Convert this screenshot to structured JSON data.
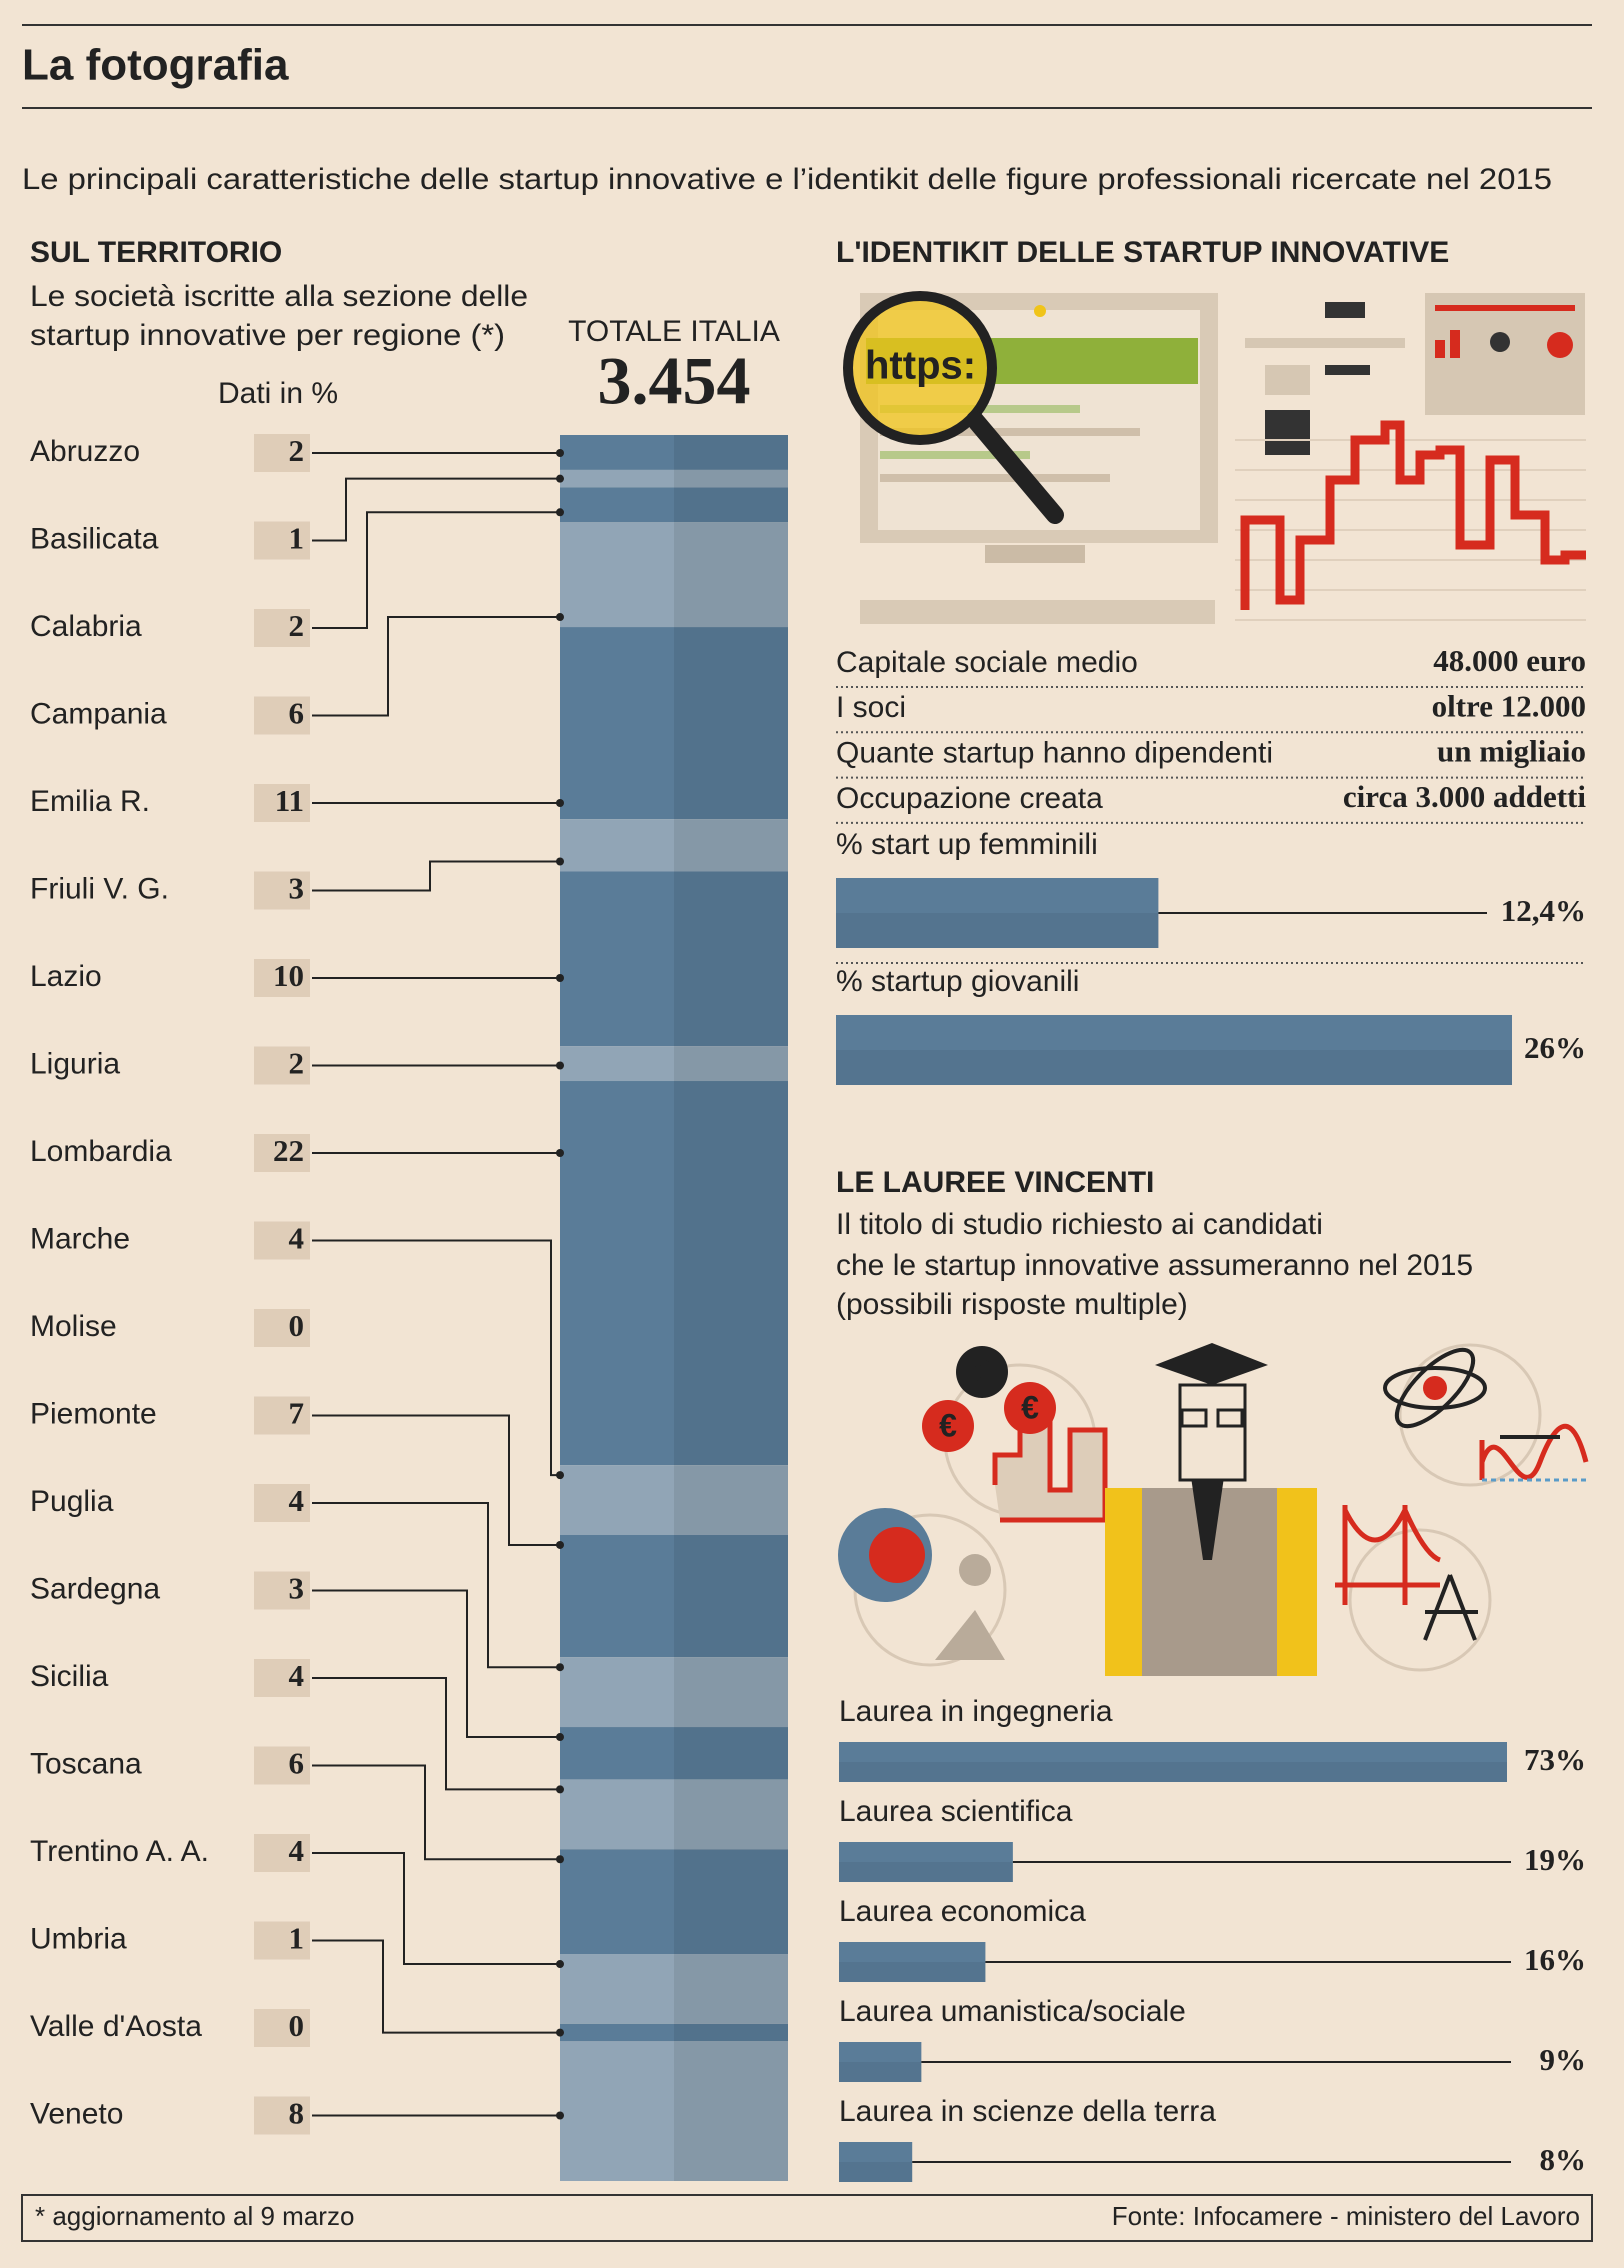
{
  "header": {
    "title": "La fotografia",
    "subtitle": "Le principali caratteristiche delle startup innovative e l’identikit delle figure professionali ricercate nel 2015"
  },
  "identikit": {
    "title": "L'IDENTIKIT DELLE STARTUP INNOVATIVE",
    "illustration_text": "https:",
    "facts": [
      {
        "label": "Capitale sociale medio",
        "value": "48.000 euro"
      },
      {
        "label": "I soci",
        "value": "oltre 12.000"
      },
      {
        "label": "Quante startup hanno dipendenti",
        "value": "un migliaio"
      },
      {
        "label": "Occupazione creata",
        "value": "circa 3.000 addetti"
      }
    ]
  },
  "lauree": {
    "title": "LE LAUREE VINCENTI",
    "subtitle_lines": [
      "Il titolo di studio richiesto ai candidati",
      "che le startup innovative assumeranno nel 2015",
      "(possibili risposte multiple)"
    ],
    "illustration_symbol": "€"
  },
  "chart_data": [
    {
      "type": "stacked-column",
      "title": "SUL TERRITORIO",
      "subtitle_lines": [
        "Le società iscritte alla sezione delle",
        "startup innovative per regione (*)"
      ],
      "unit_note": "Dati in %",
      "total_caption": "TOTALE ITALIA",
      "total_label": "3.454",
      "categories": [
        "Abruzzo",
        "Basilicata",
        "Calabria",
        "Campania",
        "Emilia R.",
        "Friuli V. G.",
        "Lazio",
        "Liguria",
        "Lombardia",
        "Marche",
        "Molise",
        "Piemonte",
        "Puglia",
        "Sardegna",
        "Sicilia",
        "Toscana",
        "Trentino A. A.",
        "Umbria",
        "Valle d'Aosta",
        "Veneto"
      ],
      "values": [
        2,
        1,
        2,
        6,
        11,
        3,
        10,
        2,
        22,
        4,
        0,
        7,
        4,
        3,
        4,
        6,
        4,
        1,
        0,
        8
      ],
      "colors": [
        "#5a7c98",
        "#91a5b6"
      ],
      "ylim": [
        0,
        100
      ]
    },
    {
      "type": "hbar",
      "categories": [
        "% start up femminili",
        "% startup giovanili"
      ],
      "values": [
        12.4,
        26
      ],
      "value_labels": [
        "12,4%",
        "26%"
      ],
      "color": "#5a7c98",
      "xlim": [
        0,
        26
      ]
    },
    {
      "type": "hbar",
      "categories": [
        "Laurea in ingegneria",
        "Laurea scientifica",
        "Laurea economica",
        "Laurea umanistica/sociale",
        "Laurea in scienze della terra"
      ],
      "values": [
        73,
        19,
        16,
        9,
        8
      ],
      "value_labels": [
        "73%",
        "19%",
        "16%",
        "9%",
        "8%"
      ],
      "color": "#5a7c98",
      "xlim": [
        0,
        73
      ]
    }
  ],
  "footer": {
    "note": "* aggiornamento al 9 marzo",
    "source": "Fonte: Infocamere - ministero del Lavoro"
  }
}
